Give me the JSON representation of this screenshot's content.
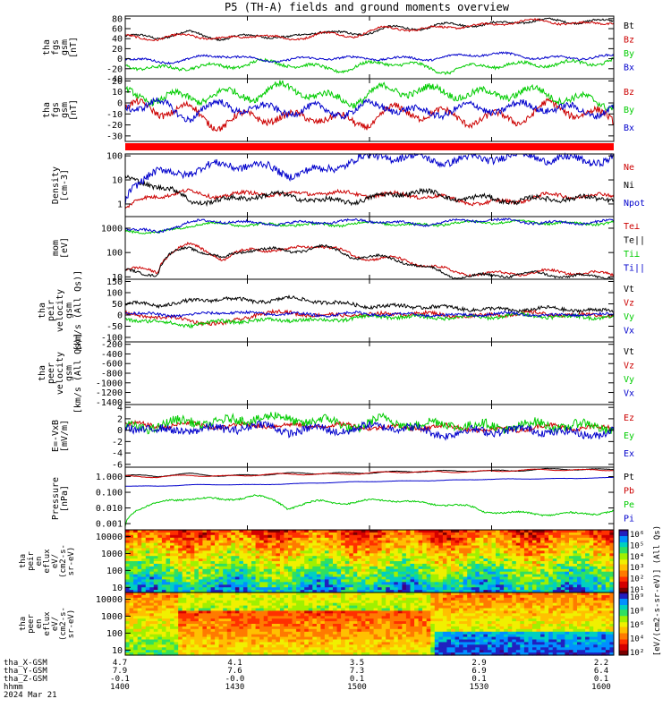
{
  "title": "P5 (TH-A) fields and ground moments overview",
  "chart_data": {
    "type": "line",
    "time_axis": {
      "start": "1400",
      "end": "1600",
      "tick_labels": [
        "1400",
        "1430",
        "1500",
        "1530",
        "1600"
      ]
    },
    "panels": [
      {
        "id": "fgs_gsm",
        "ylabel": [
          "tha",
          "fgs",
          "gsm",
          "[nT]"
        ],
        "ylim": [
          -40,
          85
        ],
        "ticks": [
          80,
          60,
          40,
          20,
          0,
          -20,
          -40
        ],
        "series": [
          {
            "name": "Bt",
            "color": "#000000",
            "base": [
              45,
              40,
              52,
              42,
              48,
              38,
              55,
              50,
              62,
              58,
              68,
              70,
              75,
              74,
              72,
              78
            ],
            "amp": 6,
            "noise": 2
          },
          {
            "name": "Bz",
            "color": "#cc0000",
            "base": [
              42,
              38,
              50,
              40,
              46,
              36,
              52,
              48,
              60,
              56,
              66,
              68,
              73,
              72,
              70,
              76
            ],
            "amp": 6,
            "noise": 2
          },
          {
            "name": "By",
            "color": "#00cc00",
            "base": [
              -15,
              -20,
              -10,
              -18,
              -12,
              -8,
              -15,
              -20,
              -10,
              -15,
              -20,
              -12,
              -18,
              -10,
              -5,
              -2
            ],
            "amp": 10,
            "noise": 3
          },
          {
            "name": "Bx",
            "color": "#0000cc",
            "base": [
              2,
              -5,
              0,
              5,
              -3,
              0,
              3,
              -2,
              0,
              2,
              5,
              8,
              5,
              3,
              4,
              2
            ],
            "amp": 6,
            "noise": 2
          }
        ],
        "legend": [
          "Bt",
          "Bz",
          "By",
          "Bx"
        ]
      },
      {
        "id": "fgs_dsl",
        "ylabel": [
          "tha",
          "fgs",
          "gsm",
          "[nT]"
        ],
        "ylim": [
          -35,
          22
        ],
        "ticks": [
          20,
          10,
          0,
          -10,
          -20,
          -30
        ],
        "series": [
          {
            "name": "Bz",
            "color": "#cc0000",
            "base": [
              -5,
              -10,
              -8,
              -15,
              -10,
              -20,
              -12,
              -15,
              -8,
              -12,
              -15,
              -10,
              -12,
              -8,
              -10,
              -12
            ],
            "amp": 10,
            "noise": 3
          },
          {
            "name": "By",
            "color": "#00cc00",
            "base": [
              5,
              2,
              8,
              10,
              5,
              12,
              8,
              5,
              10,
              8,
              12,
              10,
              8,
              5,
              4,
              3
            ],
            "amp": 8,
            "noise": 3
          },
          {
            "name": "Bx",
            "color": "#0000cc",
            "base": [
              -5,
              0,
              -8,
              -2,
              -10,
              -5,
              -3,
              -8,
              -5,
              -10,
              -2,
              -5,
              -8,
              -3,
              -5,
              -4
            ],
            "amp": 8,
            "noise": 3
          }
        ],
        "legend": [
          "Bz",
          "By",
          "Bx"
        ]
      },
      {
        "id": "density",
        "ylabel": [
          "Density",
          "[cm-3]"
        ],
        "log": true,
        "ylim": [
          0.3,
          120
        ],
        "ticks": [
          100,
          10,
          1
        ],
        "tick_labels": [
          "100",
          "10",
          "1"
        ],
        "series": [
          {
            "name": "Ne",
            "color": "#cc0000",
            "base": [
              0.6,
              2,
              3,
              2.5,
              3,
              2,
              3,
              3,
              2.5,
              2,
              1.5,
              1.2,
              1.5,
              2,
              2,
              2.5
            ],
            "amp": 0.3,
            "noise": 0.3
          },
          {
            "name": "Ni",
            "color": "#000000",
            "base": [
              10,
              5,
              1.5,
              1.5,
              2,
              2,
              1.5,
              1.5,
              2,
              3,
              2,
              2,
              1.2,
              1.5,
              1.8,
              2
            ],
            "amp": 0.3,
            "noise": 0.4
          },
          {
            "name": "Npot",
            "color": "#0000cc",
            "base": [
              0.8,
              20,
              30,
              40,
              30,
              20,
              30,
              60,
              80,
              80,
              80,
              80,
              80,
              80,
              80,
              80
            ],
            "amp": 0.5,
            "noise": 0.6
          }
        ],
        "legend": [
          "Ne",
          "Ni",
          "Npot"
        ]
      },
      {
        "id": "temperature",
        "ylabel": [
          "mom",
          "[eV]"
        ],
        "log": true,
        "ylim": [
          8,
          3000
        ],
        "ticks": [
          1000,
          100,
          10
        ],
        "tick_labels": [
          "1000",
          "100",
          "10"
        ],
        "series": [
          {
            "name": "Te⊥",
            "color": "#cc0000",
            "base": [
              20,
              15,
              200,
              60,
              150,
              100,
              200,
              80,
              60,
              30,
              15,
              15,
              15,
              14,
              14,
              14
            ],
            "amp": 0.3,
            "noise": 0.2
          },
          {
            "name": "Te||",
            "color": "#000000",
            "base": [
              15,
              12,
              180,
              55,
              140,
              90,
              190,
              75,
              55,
              25,
              12,
              12,
              12,
              11,
              11,
              12
            ],
            "amp": 0.3,
            "noise": 0.2
          },
          {
            "name": "Ti⊥",
            "color": "#00cc00",
            "base": [
              800,
              600,
              1500,
              1500,
              1200,
              1500,
              1500,
              1500,
              1500,
              1300,
              1800,
              1800,
              1600,
              1700,
              1700,
              1800
            ],
            "amp": 0.2,
            "noise": 0.2
          },
          {
            "name": "Ti||",
            "color": "#0000cc",
            "base": [
              1000,
              700,
              1800,
              1800,
              1500,
              1800,
              1800,
              1800,
              1800,
              1500,
              2000,
              2000,
              1800,
              1800,
              1800,
              1800
            ],
            "amp": 0.2,
            "noise": 0.2
          }
        ],
        "legend": [
          "Te⊥",
          "Te||",
          "Ti⊥",
          "Ti||"
        ]
      },
      {
        "id": "peir_velocity",
        "ylabel": [
          "tha",
          "peir",
          "velocity",
          "gsm",
          "[km/s (All Qs)]"
        ],
        "ylim": [
          -120,
          160
        ],
        "ticks": [
          150,
          100,
          50,
          0,
          -50,
          -100
        ],
        "series": [
          {
            "name": "Vt",
            "color": "#000000",
            "base": [
              50,
              40,
              60,
              80,
              60,
              70,
              60,
              50,
              40,
              35,
              30,
              30,
              25,
              25,
              20,
              20
            ],
            "amp": 10,
            "noise": 8
          },
          {
            "name": "Vz",
            "color": "#cc0000",
            "base": [
              0,
              -10,
              -20,
              -40,
              0,
              10,
              0,
              5,
              0,
              5,
              0,
              0,
              5,
              0,
              0,
              5
            ],
            "amp": 10,
            "noise": 8
          },
          {
            "name": "Vy",
            "color": "#00cc00",
            "base": [
              -20,
              -30,
              -40,
              -30,
              -30,
              -20,
              -20,
              -15,
              -10,
              -10,
              -5,
              -10,
              -5,
              -5,
              -5,
              -5
            ],
            "amp": 10,
            "noise": 8
          },
          {
            "name": "Vx",
            "color": "#0000cc",
            "base": [
              10,
              5,
              0,
              10,
              5,
              10,
              0,
              5,
              0,
              5,
              0,
              0,
              5,
              0,
              5,
              0
            ],
            "amp": 8,
            "noise": 6
          }
        ],
        "legend": [
          "Vt",
          "Vz",
          "Vy",
          "Vx"
        ]
      },
      {
        "id": "peer_velocity",
        "ylabel": [
          "tha",
          "peer",
          "velocity",
          "gsm",
          "[km/s (All Qs)]"
        ],
        "ylim": [
          -1450,
          -150
        ],
        "ticks": [
          -200,
          -400,
          -600,
          -800,
          -1000,
          -1200,
          -1400
        ],
        "series": [],
        "legend": [
          "Vt",
          "Vz",
          "Vy",
          "Vx"
        ]
      },
      {
        "id": "efield",
        "ylabel": [
          "E=-VxB",
          "[mV/m]"
        ],
        "ylim": [
          -6.5,
          4.5
        ],
        "ticks": [
          4,
          2,
          0,
          -2,
          -4,
          -6
        ],
        "series": [
          {
            "name": "Ez",
            "color": "#cc0000",
            "base": [
              1,
              0.5,
              1,
              0.8,
              1,
              0.5,
              0.8,
              1,
              0.5,
              0.3,
              0.5,
              0.2,
              0.3,
              0.5,
              0.3,
              0.5
            ],
            "amp": 0.5,
            "noise": 0.4
          },
          {
            "name": "Ey",
            "color": "#00cc00",
            "base": [
              0,
              0.5,
              2,
              1.5,
              2,
              1.5,
              2,
              1,
              1.5,
              0.5,
              1.5,
              1,
              0.5,
              0.5,
              1,
              0.8
            ],
            "amp": 1,
            "noise": 0.8
          },
          {
            "name": "Ex",
            "color": "#0000cc",
            "base": [
              0.5,
              0,
              0.5,
              0,
              0.5,
              0,
              0.5,
              0,
              0.5,
              0,
              -0.3,
              0,
              -0.5,
              0,
              -0.5,
              0
            ],
            "amp": 0.8,
            "noise": 0.7
          }
        ],
        "legend": [
          "Ez",
          "Ey",
          "Ex"
        ]
      },
      {
        "id": "pressure",
        "ylabel": [
          "Pressure",
          "[nPa]"
        ],
        "log": true,
        "ylim": [
          0.0004,
          4
        ],
        "ticks": [
          1,
          0.1,
          0.01,
          0.001
        ],
        "tick_labels": [
          "1.000",
          "0.100",
          "0.010",
          "0.001"
        ],
        "series": [
          {
            "name": "Pt",
            "color": "#000000",
            "base": [
              1.2,
              1,
              1.5,
              1.2,
              1.3,
              1.5,
              1.6,
              1.8,
              2,
              2,
              2.2,
              2.5,
              2.5,
              2.8,
              2.8,
              3
            ],
            "amp": 0.15,
            "noise": 0.05
          },
          {
            "name": "Pb",
            "color": "#cc0000",
            "base": [
              1,
              0.9,
              1.3,
              1.1,
              1.2,
              1.4,
              1.5,
              1.6,
              1.8,
              1.9,
              2.1,
              2.3,
              2.4,
              2.6,
              2.7,
              2.9
            ],
            "amp": 0.15,
            "noise": 0.05
          },
          {
            "name": "Pe",
            "color": "#00cc00",
            "base": [
              0.0006,
              0.02,
              0.05,
              0.03,
              0.05,
              0.01,
              0.03,
              0.02,
              0.03,
              0.02,
              0.02,
              0.006,
              0.004,
              0.004,
              0.005,
              0.006
            ],
            "amp": 0.3,
            "noise": 0.2
          },
          {
            "name": "Pi",
            "color": "#0000cc",
            "base": [
              0.25,
              0.25,
              0.3,
              0.3,
              0.3,
              0.35,
              0.4,
              0.45,
              0.5,
              0.55,
              0.6,
              0.65,
              0.7,
              0.75,
              0.8,
              0.85
            ],
            "amp": 0.05,
            "noise": 0.02
          }
        ],
        "legend": [
          "Pt",
          "Pb",
          "Pe",
          "Pi"
        ]
      }
    ],
    "spectrograms": [
      {
        "id": "peir_eflux",
        "ylabel": [
          "tha",
          "peir",
          "en",
          "eflux",
          "eV/",
          "(cm2-s-",
          "sr-eV)"
        ],
        "ylim": [
          5,
          25000
        ],
        "ticks": [
          10000,
          1000,
          100,
          10
        ],
        "colorbar_labels": [
          "10⁶",
          "10⁵",
          "10⁴",
          "10³",
          "10²",
          "10¹"
        ],
        "colorbar_title": "[eV/(cm2-s-sr-eV)] (All Qs)"
      },
      {
        "id": "peer_eflux",
        "ylabel": [
          "tha",
          "peer",
          "en",
          "eflux",
          "eV/",
          "(cm2-s-",
          "sr-eV)"
        ],
        "ylim": [
          5,
          25000
        ],
        "ticks": [
          10000,
          1000,
          100,
          10
        ],
        "colorbar_labels": [
          "10⁹",
          "10⁸",
          "10⁶",
          "10⁴",
          "10²"
        ],
        "colorbar_title": "[eV/(cm2-s-sr-eV)] (All Qs)"
      }
    ],
    "ephemeris": {
      "rows": [
        {
          "label": "tha_X-GSM",
          "values": [
            "4.7",
            "4.1",
            "3.5",
            "2.9",
            "2.2"
          ]
        },
        {
          "label": "tha_Y-GSM",
          "values": [
            "7.9",
            "7.6",
            "7.3",
            "6.9",
            "6.4"
          ]
        },
        {
          "label": "tha_Z-GSM",
          "values": [
            "-0.1",
            "-0.0",
            "0.1",
            "0.1",
            "0.1"
          ]
        },
        {
          "label": "hhmm",
          "values": [
            "1400",
            "1430",
            "1500",
            "1530",
            "1600"
          ]
        }
      ],
      "date": "2024 Mar 21"
    }
  }
}
